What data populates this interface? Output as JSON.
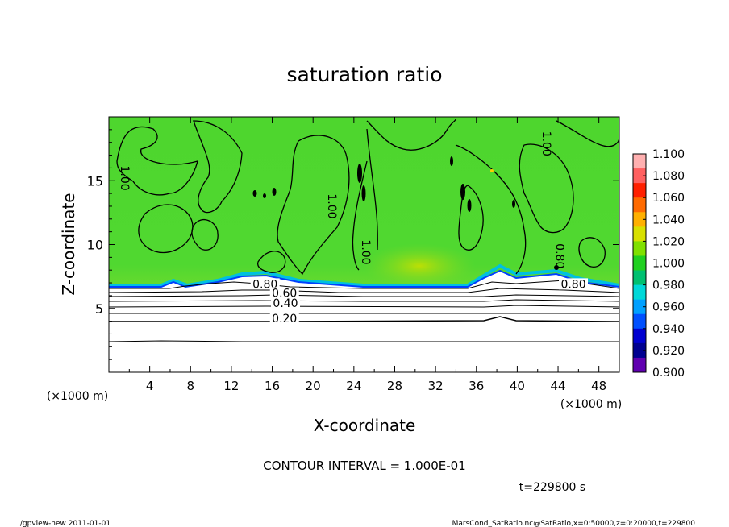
{
  "chart_data": {
    "type": "heatmap",
    "title": "saturation ratio",
    "xlabel": "X-coordinate",
    "ylabel": "Z-coordinate",
    "x_unit": "(×1000 m)",
    "z_unit": "(×1000 m)",
    "xlim": [
      0,
      50
    ],
    "ylim": [
      0,
      20
    ],
    "x_ticks": [
      "4",
      "8",
      "12",
      "16",
      "20",
      "24",
      "28",
      "32",
      "36",
      "40",
      "44",
      "48"
    ],
    "y_ticks": [
      "5",
      "10",
      "15"
    ],
    "colorbar": {
      "ticks": [
        "1.100",
        "1.080",
        "1.060",
        "1.040",
        "1.020",
        "1.000",
        "0.980",
        "0.960",
        "0.940",
        "0.920",
        "0.900"
      ],
      "colors": [
        "#ffb0b0",
        "#ff6060",
        "#ff2000",
        "#ff6a00",
        "#ffb000",
        "#d8e000",
        "#80e000",
        "#20d020",
        "#00c070",
        "#00d8d8",
        "#00a0ff",
        "#0050ff",
        "#0000d0",
        "#000090",
        "#6000b0"
      ]
    },
    "contour_labels": [
      {
        "text": "1.00",
        "x": 1.2,
        "z": 15.2
      },
      {
        "text": "1.00",
        "x": 21.5,
        "z": 13.0
      },
      {
        "text": "1.00",
        "x": 24.8,
        "z": 9.4
      },
      {
        "text": "1.00",
        "x": 42.5,
        "z": 17.9
      },
      {
        "text": "0.80",
        "x": 43.8,
        "z": 9.1
      },
      {
        "text": "0.80",
        "x": 15.3,
        "z": 6.6
      },
      {
        "text": "0.80",
        "x": 45.5,
        "z": 6.6
      },
      {
        "text": "0.60",
        "x": 17.2,
        "z": 5.9
      },
      {
        "text": "0.40",
        "x": 17.3,
        "z": 5.1
      },
      {
        "text": "0.20",
        "x": 17.2,
        "z": 3.9
      }
    ],
    "contour_interval": "CONTOUR INTERVAL = 1.000E-01",
    "time": "t=229800 s",
    "grid": false
  },
  "footer": {
    "left": "./gpview-new   2011-01-01",
    "right": "MarsCond_SatRatio.nc@SatRatio,x=0:50000,z=0:20000,t=229800"
  }
}
